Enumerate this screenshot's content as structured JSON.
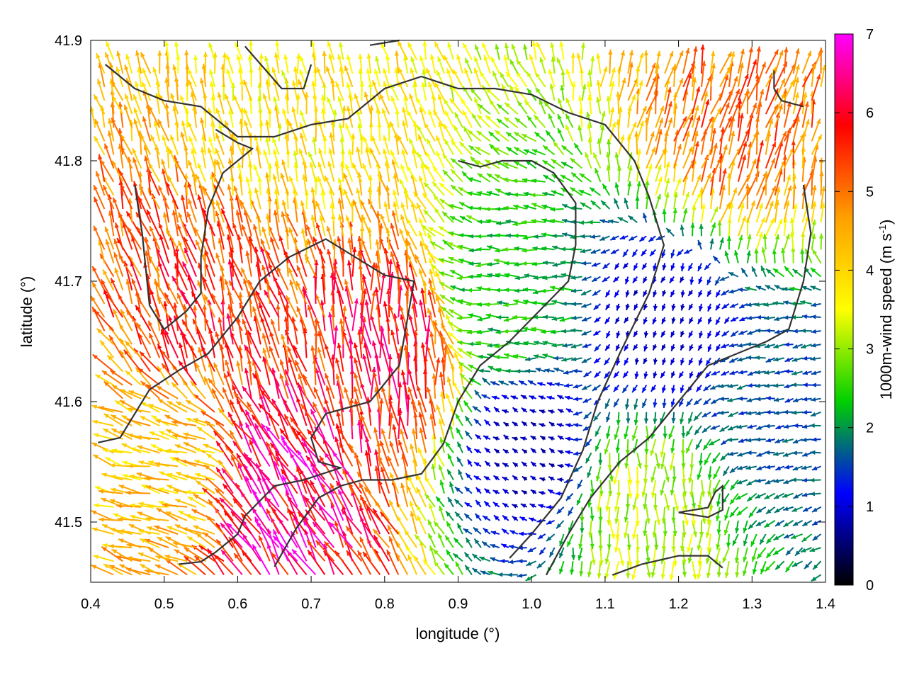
{
  "chart_data": {
    "type": "vector-field",
    "title": "",
    "xlabel": "longitude (°)",
    "ylabel": "latitude (°)",
    "xlim": [
      0.4,
      1.4
    ],
    "ylim": [
      41.45,
      41.9
    ],
    "xticks": [
      0.4,
      0.5,
      0.6,
      0.7,
      0.8,
      0.9,
      1.0,
      1.1,
      1.2,
      1.3,
      1.4
    ],
    "xtick_labels": [
      "0.4",
      "0.5",
      "0.6",
      "0.7",
      "0.8",
      "0.9",
      "1.0",
      "1.1",
      "1.2",
      "1.3",
      "1.4"
    ],
    "yticks": [
      41.5,
      41.6,
      41.7,
      41.8,
      41.9
    ],
    "ytick_labels": [
      "41.5",
      "41.6",
      "41.7",
      "41.8",
      "41.9"
    ],
    "colorbar": {
      "label": "1000m-wind speed (m s",
      "label_sup": "-1",
      "label_end": ")",
      "range": [
        0,
        7
      ],
      "ticks": [
        0,
        1,
        2,
        3,
        4,
        5,
        6,
        7
      ],
      "tick_labels": [
        "0",
        "1",
        "2",
        "3",
        "4",
        "5",
        "6",
        "7"
      ],
      "colors": [
        "#000000",
        "#0000ff",
        "#00d000",
        "#ffff00",
        "#ffa000",
        "#ff0000",
        "#ff00ff"
      ]
    },
    "grid": false,
    "regions": [
      {
        "lon": [
          0.4,
          0.63
        ],
        "lat": [
          41.45,
          41.62
        ],
        "speed": 4.2,
        "direction_deg": 285
      },
      {
        "lon": [
          0.55,
          0.78
        ],
        "lat": [
          41.45,
          41.58
        ],
        "speed": 6.3,
        "direction_deg": 330
      },
      {
        "lon": [
          0.45,
          0.72
        ],
        "lat": [
          41.58,
          41.76
        ],
        "speed": 5.5,
        "direction_deg": 345
      },
      {
        "lon": [
          0.72,
          0.9
        ],
        "lat": [
          41.52,
          41.74
        ],
        "speed": 5.8,
        "direction_deg": 355
      },
      {
        "lon": [
          0.4,
          0.95
        ],
        "lat": [
          41.76,
          41.9
        ],
        "speed": 3.8,
        "direction_deg": 350
      },
      {
        "lon": [
          0.9,
          1.05
        ],
        "lat": [
          41.62,
          41.74
        ],
        "speed": 2.3,
        "direction_deg": 270
      },
      {
        "lon": [
          0.92,
          1.08
        ],
        "lat": [
          41.5,
          41.62
        ],
        "speed": 0.8,
        "direction_deg": 300
      },
      {
        "lon": [
          1.05,
          1.25
        ],
        "lat": [
          41.45,
          41.58
        ],
        "speed": 3.2,
        "direction_deg": 180
      },
      {
        "lon": [
          1.08,
          1.28
        ],
        "lat": [
          41.6,
          41.74
        ],
        "speed": 0.9,
        "direction_deg": 200
      },
      {
        "lon": [
          1.28,
          1.4
        ],
        "lat": [
          41.52,
          41.68
        ],
        "speed": 1.6,
        "direction_deg": 260
      },
      {
        "lon": [
          1.15,
          1.4
        ],
        "lat": [
          41.74,
          41.9
        ],
        "speed": 5.0,
        "direction_deg": 15
      }
    ],
    "contours": [
      [
        [
          0.41,
          41.566
        ],
        [
          0.44,
          41.57
        ],
        [
          0.48,
          41.61
        ],
        [
          0.52,
          41.626
        ],
        [
          0.56,
          41.64
        ],
        [
          0.6,
          41.67
        ],
        [
          0.63,
          41.7
        ],
        [
          0.67,
          41.72
        ],
        [
          0.72,
          41.735
        ],
        [
          0.76,
          41.72
        ],
        [
          0.8,
          41.705
        ],
        [
          0.84,
          41.7
        ],
        [
          0.82,
          41.63
        ],
        [
          0.78,
          41.6
        ],
        [
          0.72,
          41.59
        ],
        [
          0.7,
          41.57
        ],
        [
          0.71,
          41.55
        ],
        [
          0.74,
          41.545
        ],
        [
          0.69,
          41.535
        ],
        [
          0.65,
          41.53
        ],
        [
          0.61,
          41.505
        ],
        [
          0.6,
          41.49
        ],
        [
          0.57,
          41.475
        ],
        [
          0.55,
          41.467
        ],
        [
          0.52,
          41.465
        ]
      ],
      [
        [
          0.65,
          41.463
        ],
        [
          0.68,
          41.495
        ],
        [
          0.71,
          41.52
        ],
        [
          0.74,
          41.53
        ],
        [
          0.77,
          41.535
        ],
        [
          0.81,
          41.535
        ],
        [
          0.85,
          41.54
        ],
        [
          0.88,
          41.565
        ],
        [
          0.9,
          41.6
        ],
        [
          0.93,
          41.63
        ],
        [
          0.97,
          41.65
        ],
        [
          1.01,
          41.675
        ],
        [
          1.05,
          41.7
        ],
        [
          1.06,
          41.73
        ],
        [
          1.06,
          41.765
        ],
        [
          1.03,
          41.79
        ],
        [
          1.0,
          41.8
        ],
        [
          0.96,
          41.8
        ],
        [
          0.93,
          41.795
        ],
        [
          0.9,
          41.8
        ]
      ],
      [
        [
          1.02,
          41.456
        ],
        [
          1.05,
          41.49
        ],
        [
          1.08,
          41.52
        ],
        [
          1.12,
          41.55
        ],
        [
          1.16,
          41.57
        ],
        [
          1.2,
          41.6
        ],
        [
          1.24,
          41.63
        ],
        [
          1.28,
          41.64
        ],
        [
          1.32,
          41.65
        ],
        [
          1.35,
          41.66
        ],
        [
          1.37,
          41.7
        ],
        [
          1.38,
          41.74
        ],
        [
          1.37,
          41.78
        ]
      ],
      [
        [
          1.11,
          41.456
        ],
        [
          1.15,
          41.465
        ],
        [
          1.2,
          41.472
        ],
        [
          1.24,
          41.472
        ],
        [
          1.26,
          41.462
        ]
      ],
      [
        [
          1.2,
          41.508
        ],
        [
          1.24,
          41.512
        ],
        [
          1.25,
          41.525
        ],
        [
          1.26,
          41.53
        ],
        [
          1.26,
          41.51
        ],
        [
          1.24,
          41.504
        ],
        [
          1.2,
          41.508
        ]
      ],
      [
        [
          0.42,
          41.88
        ],
        [
          0.46,
          41.86
        ],
        [
          0.5,
          41.85
        ],
        [
          0.55,
          41.845
        ],
        [
          0.6,
          41.82
        ],
        [
          0.65,
          41.82
        ],
        [
          0.7,
          41.83
        ],
        [
          0.75,
          41.835
        ],
        [
          0.8,
          41.86
        ],
        [
          0.85,
          41.87
        ],
        [
          0.9,
          41.86
        ],
        [
          0.95,
          41.86
        ],
        [
          1.0,
          41.855
        ],
        [
          1.05,
          41.84
        ],
        [
          1.1,
          41.83
        ],
        [
          1.14,
          41.8
        ],
        [
          1.16,
          41.77
        ],
        [
          1.18,
          41.73
        ],
        [
          1.16,
          41.69
        ],
        [
          1.12,
          41.64
        ],
        [
          1.09,
          41.6
        ],
        [
          1.07,
          41.56
        ],
        [
          1.04,
          41.52
        ],
        [
          1.0,
          41.49
        ],
        [
          0.97,
          41.47
        ]
      ],
      [
        [
          0.57,
          41.826
        ],
        [
          0.6,
          41.815
        ],
        [
          0.62,
          41.81
        ],
        [
          0.6,
          41.8
        ],
        [
          0.58,
          41.79
        ],
        [
          0.56,
          41.76
        ],
        [
          0.55,
          41.72
        ],
        [
          0.55,
          41.69
        ],
        [
          0.53,
          41.675
        ],
        [
          0.5,
          41.66
        ],
        [
          0.48,
          41.68
        ],
        [
          0.47,
          41.74
        ],
        [
          0.46,
          41.78
        ]
      ],
      [
        [
          0.78,
          41.896
        ],
        [
          0.82,
          41.9
        ]
      ],
      [
        [
          0.61,
          41.895
        ],
        [
          0.66,
          41.86
        ],
        [
          0.69,
          41.86
        ],
        [
          0.7,
          41.88
        ]
      ],
      [
        [
          1.33,
          41.875
        ],
        [
          1.33,
          41.86
        ],
        [
          1.34,
          41.85
        ],
        [
          1.37,
          41.845
        ]
      ]
    ]
  }
}
